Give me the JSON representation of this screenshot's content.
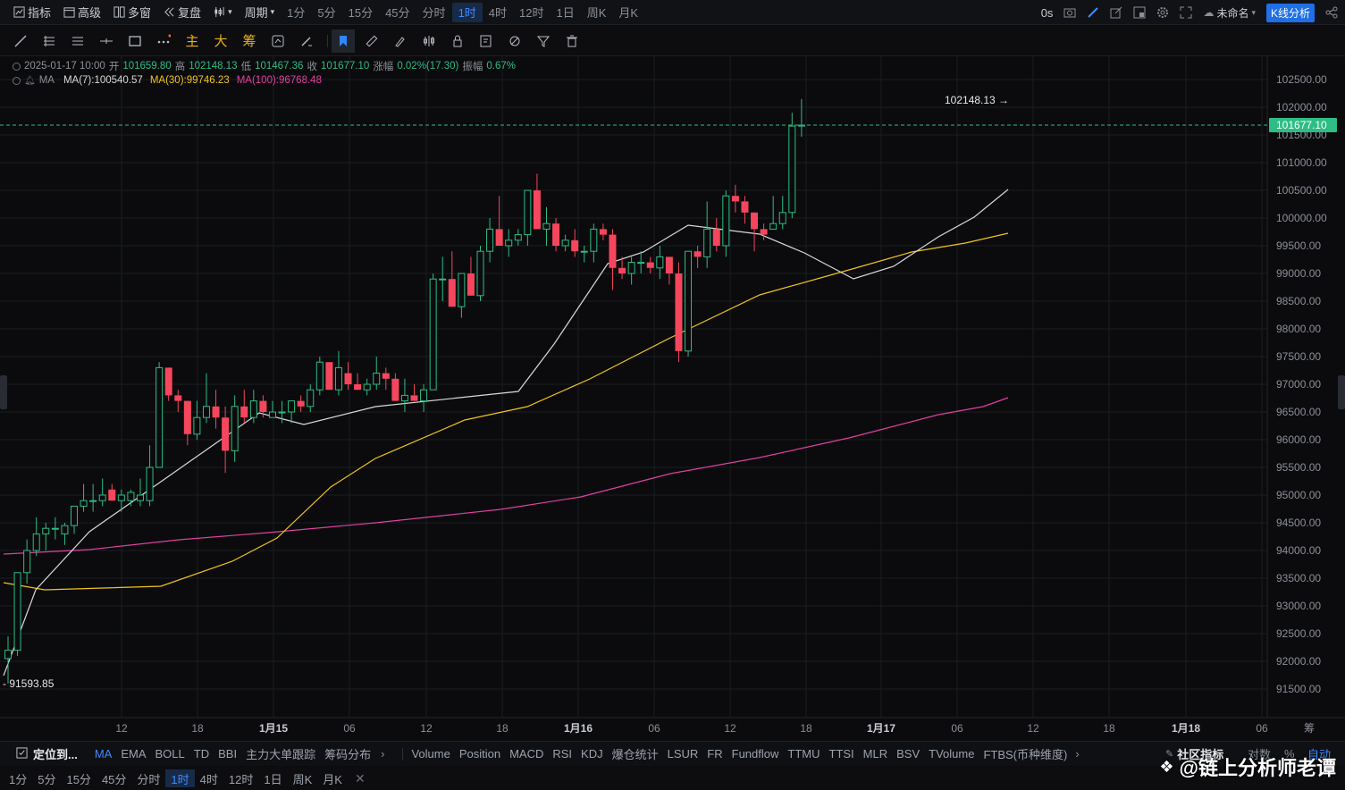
{
  "topbar": {
    "indicators": "指标",
    "advanced": "高级",
    "multi_window": "多窗",
    "replay": "复盘",
    "period": "周期",
    "periods": [
      "1分",
      "5分",
      "15分",
      "45分",
      "分时",
      "1时",
      "4时",
      "12时",
      "1日",
      "周K",
      "月K"
    ],
    "active_period": "1时",
    "countdown": "0s",
    "layout_name": "未命名",
    "kline_analysis": "K线分析"
  },
  "toolbar": {
    "chars": [
      "主",
      "大",
      "筹"
    ]
  },
  "ohlc": {
    "date": "2025-01-17 10:00",
    "open_label": "开",
    "open": "101659.80",
    "high_label": "高",
    "high": "102148.13",
    "low_label": "低",
    "low": "101467.36",
    "close_label": "收",
    "close": "101677.10",
    "change_label": "涨幅",
    "change": "0.02%(17.30)",
    "amp_label": "振幅",
    "amp": "0.67%"
  },
  "ma_legend": {
    "label": "MA",
    "ma7": "MA(7):100540.57",
    "ma30": "MA(30):99746.23",
    "ma100": "MA(100):96768.48"
  },
  "colors": {
    "up": "#2dbd85",
    "down": "#f6465d",
    "ma7": "#d9d9d9",
    "ma30": "#f0c419",
    "ma100": "#e040a0",
    "accent": "#3d8bff"
  },
  "chart_data": {
    "type": "candlestick",
    "ylim": [
      91200,
      102700
    ],
    "y_ticks": [
      "102500.00",
      "102000.00",
      "101500.00",
      "101000.00",
      "100500.00",
      "100000.00",
      "99500.00",
      "99000.00",
      "98500.00",
      "98000.00",
      "97500.00",
      "97000.00",
      "96500.00",
      "96000.00",
      "95500.00",
      "95000.00",
      "94500.00",
      "94000.00",
      "93500.00",
      "93000.00",
      "92500.00",
      "92000.00",
      "91500.00"
    ],
    "x_ticks": [
      "12",
      "18",
      "1月15",
      "06",
      "12",
      "18",
      "1月16",
      "06",
      "12",
      "18",
      "1月17",
      "06",
      "12",
      "18",
      "1月18",
      "06"
    ],
    "current_price": "101677.10",
    "high_marker": "102148.13",
    "low_marker": "91593.85",
    "candles": [
      [
        92050,
        92450,
        91600,
        92200
      ],
      [
        92200,
        93600,
        92100,
        93600
      ],
      [
        93600,
        94200,
        93400,
        94000
      ],
      [
        94000,
        94600,
        93900,
        94300
      ],
      [
        94300,
        94500,
        94000,
        94400
      ],
      [
        94400,
        94600,
        94200,
        94400
      ],
      [
        94300,
        94500,
        94100,
        94450
      ],
      [
        94450,
        94800,
        94300,
        94800
      ],
      [
        94800,
        95200,
        94700,
        94900
      ],
      [
        94900,
        95200,
        94700,
        94900
      ],
      [
        94900,
        95300,
        94800,
        95000
      ],
      [
        95100,
        95200,
        94900,
        94900
      ],
      [
        94900,
        95100,
        94700,
        95000
      ],
      [
        94900,
        95100,
        94800,
        95050
      ],
      [
        94900,
        95300,
        94800,
        95000
      ],
      [
        94900,
        95900,
        94800,
        95500
      ],
      [
        95500,
        97400,
        95500,
        97300
      ],
      [
        97300,
        97300,
        96700,
        96800
      ],
      [
        96800,
        96900,
        96500,
        96700
      ],
      [
        96700,
        96700,
        95900,
        96100
      ],
      [
        96100,
        96700,
        96000,
        96400
      ],
      [
        96400,
        97200,
        96300,
        96600
      ],
      [
        96600,
        96900,
        96200,
        96400
      ],
      [
        96400,
        96600,
        95400,
        95800
      ],
      [
        95800,
        96800,
        95600,
        96600
      ],
      [
        96600,
        96900,
        96300,
        96400
      ],
      [
        96400,
        96900,
        96300,
        96700
      ],
      [
        96700,
        96800,
        96400,
        96500
      ],
      [
        96400,
        96700,
        96400,
        96500
      ],
      [
        96500,
        96700,
        96300,
        96500
      ],
      [
        96500,
        96700,
        96300,
        96700
      ],
      [
        96700,
        96800,
        96500,
        96600
      ],
      [
        96600,
        97000,
        96500,
        96900
      ],
      [
        96900,
        97500,
        96800,
        97400
      ],
      [
        97400,
        97300,
        96900,
        96900
      ],
      [
        96900,
        97600,
        96800,
        97300
      ],
      [
        97200,
        97400,
        96900,
        97000
      ],
      [
        97000,
        97200,
        96900,
        96900
      ],
      [
        96900,
        97100,
        96800,
        97000
      ],
      [
        97000,
        97500,
        96900,
        97200
      ],
      [
        97200,
        97300,
        96900,
        97100
      ],
      [
        97100,
        97200,
        96700,
        96700
      ],
      [
        96700,
        97100,
        96500,
        96800
      ],
      [
        96800,
        97000,
        96700,
        96700
      ],
      [
        96700,
        97000,
        96500,
        96900
      ],
      [
        96900,
        99000,
        96900,
        98900
      ],
      [
        98900,
        99300,
        98500,
        98900
      ],
      [
        98900,
        99400,
        98400,
        98400
      ],
      [
        98400,
        99000,
        98200,
        99000
      ],
      [
        99000,
        99300,
        98600,
        98600
      ],
      [
        98600,
        99500,
        98500,
        99400
      ],
      [
        99400,
        100000,
        99200,
        99800
      ],
      [
        99800,
        100400,
        99500,
        99500
      ],
      [
        99500,
        99800,
        99300,
        99600
      ],
      [
        99600,
        99800,
        99500,
        99700
      ],
      [
        99700,
        100500,
        99500,
        100500
      ],
      [
        100500,
        100800,
        99800,
        99800
      ],
      [
        99800,
        100200,
        99500,
        99900
      ],
      [
        99900,
        100000,
        99400,
        99500
      ],
      [
        99500,
        99700,
        99400,
        99600
      ],
      [
        99600,
        99800,
        99300,
        99400
      ],
      [
        99400,
        99500,
        99200,
        99400
      ],
      [
        99400,
        99900,
        99200,
        99800
      ],
      [
        99800,
        99900,
        99600,
        99700
      ],
      [
        99700,
        99800,
        98700,
        99100
      ],
      [
        99100,
        99300,
        98900,
        99000
      ],
      [
        99000,
        99300,
        98800,
        99200
      ],
      [
        99200,
        99400,
        99000,
        99200
      ],
      [
        99200,
        99300,
        99000,
        99100
      ],
      [
        99100,
        99500,
        98900,
        99300
      ],
      [
        99300,
        99300,
        98800,
        99000
      ],
      [
        99000,
        99200,
        97400,
        97600
      ],
      [
        97600,
        99400,
        97500,
        99400
      ],
      [
        99400,
        99500,
        99100,
        99300
      ],
      [
        99300,
        100300,
        99100,
        99800
      ],
      [
        99800,
        100000,
        99400,
        99500
      ],
      [
        99500,
        100500,
        99300,
        100400
      ],
      [
        100400,
        100600,
        100100,
        100300
      ],
      [
        100300,
        100400,
        99900,
        100100
      ],
      [
        100100,
        100100,
        99400,
        99800
      ],
      [
        99800,
        99900,
        99600,
        99700
      ],
      [
        99800,
        100400,
        99800,
        99900
      ],
      [
        99900,
        100400,
        99800,
        100100
      ],
      [
        100100,
        101900,
        100000,
        101660
      ],
      [
        101660,
        102148,
        101467,
        101677
      ]
    ],
    "ma7": [
      [
        4,
        756
      ],
      [
        40,
        660
      ],
      [
        100,
        595
      ],
      [
        200,
        525
      ],
      [
        290,
        462
      ],
      [
        340,
        475
      ],
      [
        420,
        455
      ],
      [
        580,
        438
      ],
      [
        620,
        385
      ],
      [
        680,
        295
      ],
      [
        720,
        282
      ],
      [
        770,
        252
      ],
      [
        850,
        262
      ],
      [
        900,
        283
      ],
      [
        955,
        312
      ],
      [
        1000,
        298
      ],
      [
        1050,
        265
      ],
      [
        1090,
        243
      ],
      [
        1128,
        212
      ]
    ],
    "ma30": [
      [
        4,
        652
      ],
      [
        50,
        660
      ],
      [
        180,
        656
      ],
      [
        260,
        628
      ],
      [
        310,
        602
      ],
      [
        370,
        545
      ],
      [
        420,
        513
      ],
      [
        520,
        470
      ],
      [
        590,
        455
      ],
      [
        660,
        424
      ],
      [
        750,
        378
      ],
      [
        850,
        330
      ],
      [
        950,
        302
      ],
      [
        1020,
        282
      ],
      [
        1080,
        272
      ],
      [
        1128,
        261
      ]
    ],
    "ma100": [
      [
        4,
        620
      ],
      [
        100,
        615
      ],
      [
        200,
        604
      ],
      [
        300,
        596
      ],
      [
        420,
        585
      ],
      [
        560,
        570
      ],
      [
        650,
        556
      ],
      [
        750,
        530
      ],
      [
        850,
        512
      ],
      [
        950,
        490
      ],
      [
        1050,
        464
      ],
      [
        1100,
        455
      ],
      [
        1128,
        445
      ]
    ]
  },
  "indicators_bar": {
    "locate": "定位到...",
    "main_items": [
      "MA",
      "EMA",
      "BOLL",
      "TD",
      "BBI",
      "主力大单跟踪",
      "筹码分布"
    ],
    "sub_items": [
      "Volume",
      "Position",
      "MACD",
      "RSI",
      "KDJ",
      "爆仓统计",
      "LSUR",
      "FR",
      "Fundflow",
      "TTMU",
      "TTSI",
      "MLR",
      "BSV",
      "TVolume",
      "FTBS(币种维度)"
    ],
    "community": "社区指标",
    "log": "对数",
    "pct": "%",
    "auto": "自动"
  },
  "bottom_periods": [
    "1分",
    "5分",
    "15分",
    "45分",
    "分时",
    "1时",
    "4时",
    "12时",
    "1日",
    "周K",
    "月K"
  ],
  "watermark": "@链上分析师老谭"
}
